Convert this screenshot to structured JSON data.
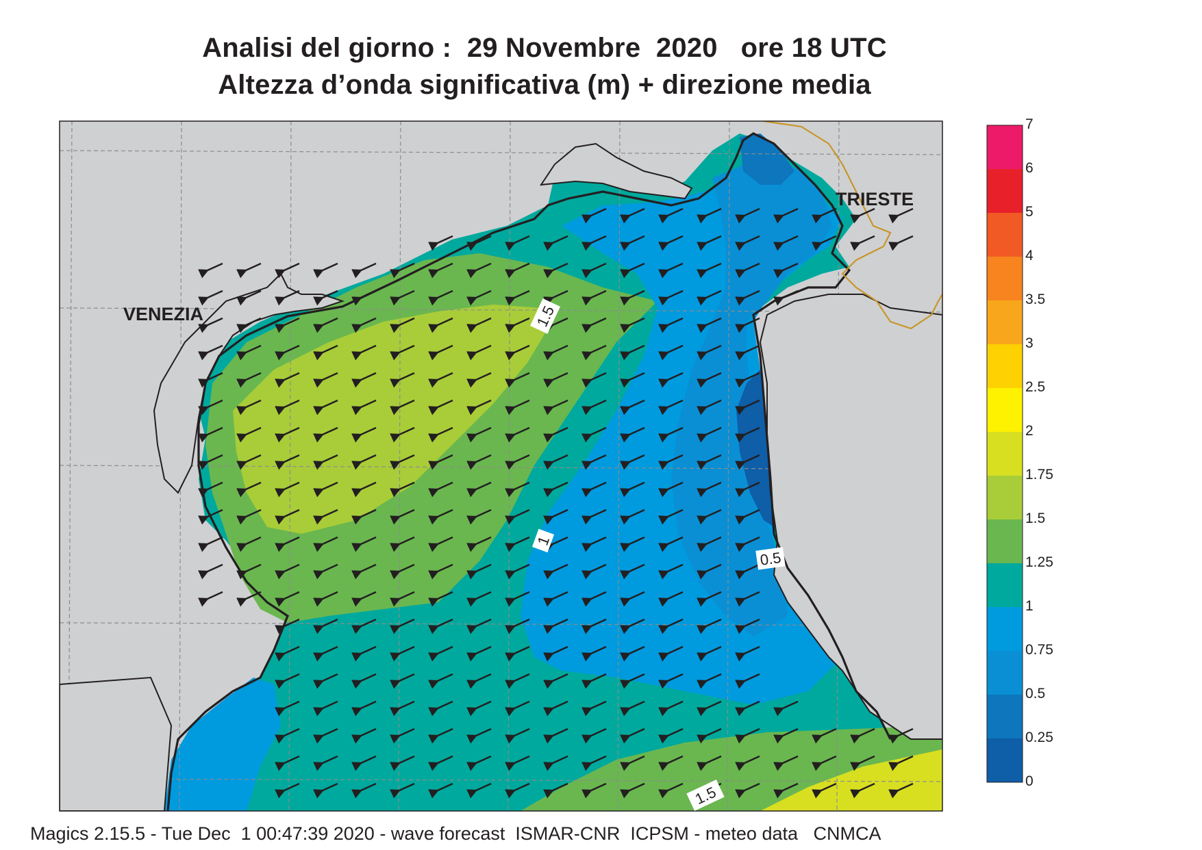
{
  "title": {
    "line1": "Analisi del giorno :  29 Novembre  2020   ore 18 UTC",
    "line2": "Altezza d’onda significativa (m) + direzione media"
  },
  "cities": {
    "venezia": "VENEZIA",
    "trieste": "TRIESTE"
  },
  "contour_labels": [
    "1.5",
    "1",
    "0.5",
    "1.5"
  ],
  "colorbar": {
    "labels": [
      "7",
      "6",
      "5",
      "4",
      "3.5",
      "3",
      "2.5",
      "2",
      "1.75",
      "1.5",
      "1.25",
      "1",
      "0.75",
      "0.5",
      "0.25",
      "0"
    ],
    "colors": [
      "#ed1a6a",
      "#e8202a",
      "#f15a24",
      "#f7841f",
      "#f8a71c",
      "#fed102",
      "#fff200",
      "#d8df21",
      "#a9cd38",
      "#6ab750",
      "#00a99d",
      "#009ade",
      "#0a8fd4",
      "#0d76bd",
      "#0e5ea8"
    ]
  },
  "palette": {
    "land": "#cfd0d2",
    "coast": "#231f20",
    "border": "#c8962a",
    "arrow": "#231f20"
  },
  "footer": "Magics 2.15.5 - Tue Dec  1 00:47:39 2020 - wave forecast  ISMAR-CNR  ICPSM - meteo data   CNMCA"
}
